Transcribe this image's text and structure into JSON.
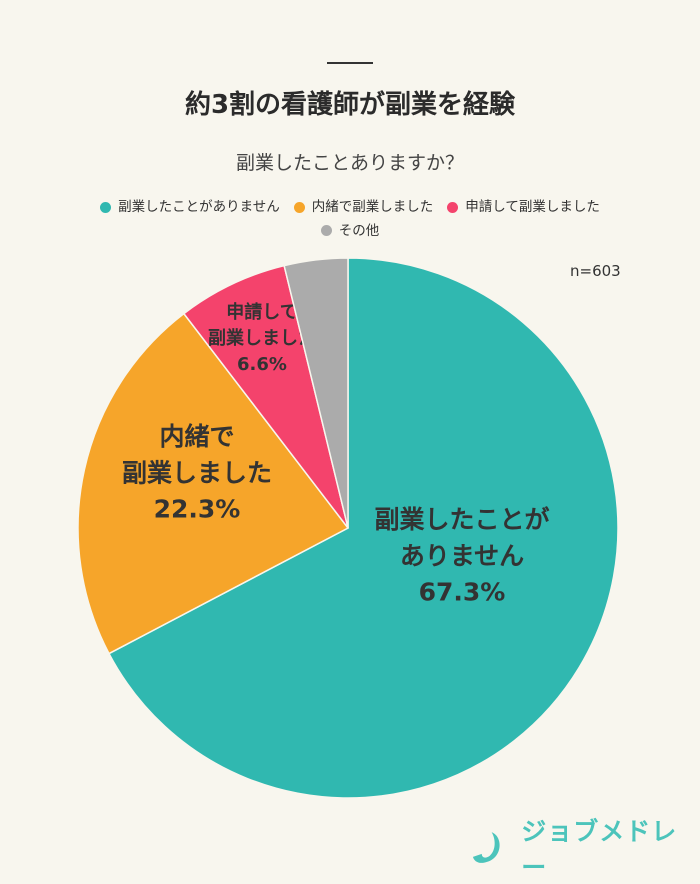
{
  "title": "約3割の看護師が副業を経験",
  "chart_data": {
    "type": "pie",
    "title": "副業したことありますか？",
    "sample_size": "n=603",
    "categories": [
      "副業したことがありません",
      "内緒で副業しました",
      "申請して副業しました",
      "その他"
    ],
    "values": [
      67.3,
      22.3,
      6.6,
      3.8
    ],
    "colors": [
      "#30b8b0",
      "#f6a52a",
      "#f4436c",
      "#ababab"
    ],
    "slice_labels": [
      {
        "lines": [
          "副業したことが",
          "ありません"
        ],
        "pct": "67.3%"
      },
      {
        "lines": [
          "内緒で",
          "副業しました"
        ],
        "pct": "22.3%"
      },
      {
        "lines": [
          "申請して",
          "副業しました"
        ],
        "pct": "6.6%"
      },
      null
    ],
    "legend_placement": "top"
  },
  "logo_text": "ジョブメドレー"
}
